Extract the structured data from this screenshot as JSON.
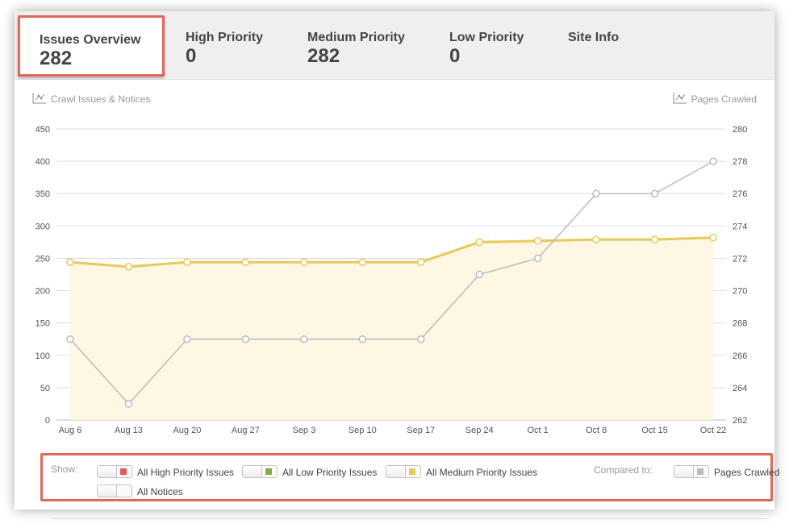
{
  "tabs": [
    {
      "label": "Issues Overview",
      "count": "282"
    },
    {
      "label": "High Priority",
      "count": "0"
    },
    {
      "label": "Medium Priority",
      "count": "282"
    },
    {
      "label": "Low Priority",
      "count": "0"
    },
    {
      "label": "Site Info",
      "count": ""
    }
  ],
  "chart": {
    "left_caption": "Crawl Issues & Notices",
    "right_caption": "Pages Crawled"
  },
  "legend": {
    "show_label": "Show:",
    "high_label": "All High Priority Issues",
    "low_label": "All Low Priority Issues",
    "medium_label": "All Medium Priority Issues",
    "notices_label": "All Notices",
    "compared_label": "Compared to:",
    "pages_label": "Pages Crawled"
  },
  "colors": {
    "high": "#e05a5a",
    "low": "#8aab3c",
    "medium": "#e8c95a",
    "pages": "#bbbbbb",
    "highlight_border": "#e0675b"
  },
  "chart_data": {
    "type": "line",
    "categories": [
      "Aug 6",
      "Aug 13",
      "Aug 20",
      "Aug 27",
      "Sep 3",
      "Sep 10",
      "Sep 17",
      "Sep 24",
      "Oct 1",
      "Oct 8",
      "Oct 15",
      "Oct 22"
    ],
    "series": [
      {
        "name": "All Medium Priority Issues",
        "axis": "left",
        "color": "#e8c95a",
        "values": [
          244,
          237,
          244,
          244,
          244,
          244,
          244,
          275,
          277,
          279,
          279,
          282
        ]
      },
      {
        "name": "Pages Crawled",
        "axis": "right",
        "color": "#bbbbbb",
        "values": [
          267,
          263,
          267,
          267,
          267,
          267,
          267,
          271,
          272,
          276,
          276,
          278
        ]
      }
    ],
    "y_left": {
      "min": 0,
      "max": 450,
      "ticks": [
        0,
        50,
        100,
        150,
        200,
        250,
        300,
        350,
        400,
        450
      ]
    },
    "y_right": {
      "min": 262,
      "max": 280,
      "ticks": [
        262,
        264,
        266,
        268,
        270,
        272,
        274,
        276,
        278,
        280
      ]
    },
    "grid": true
  }
}
